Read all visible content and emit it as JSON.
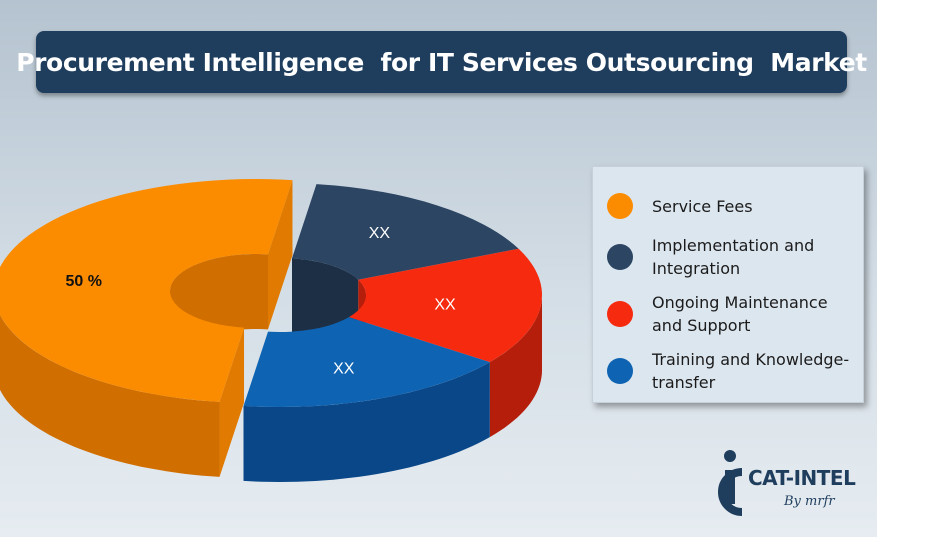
{
  "title": "Procurement Intelligence  for IT Services Outsourcing  Market",
  "chart_data": {
    "type": "pie",
    "style": "3d-donut",
    "categories": [
      "Service Fees",
      "Implementation and Integration",
      "Ongoing Maintenance and Support",
      "Training and Knowledge-transfer"
    ],
    "values": [
      50,
      16,
      17,
      17
    ],
    "labels": [
      "50 %",
      "XX",
      "XX",
      "XX"
    ],
    "colors": [
      "#fb8c00",
      "#2c4562",
      "#f52a0f",
      "#0e63b2"
    ],
    "side_colors": [
      "#d06e00",
      "#1d2f44",
      "#b51e0b",
      "#0a4788"
    ],
    "label_colors": [
      "#111111",
      "#ffffff",
      "#ffffff",
      "#ffffff"
    ],
    "legend_position": "right"
  },
  "logo": {
    "name": "CAT-INTEL",
    "tagline": "By mrfr"
  }
}
